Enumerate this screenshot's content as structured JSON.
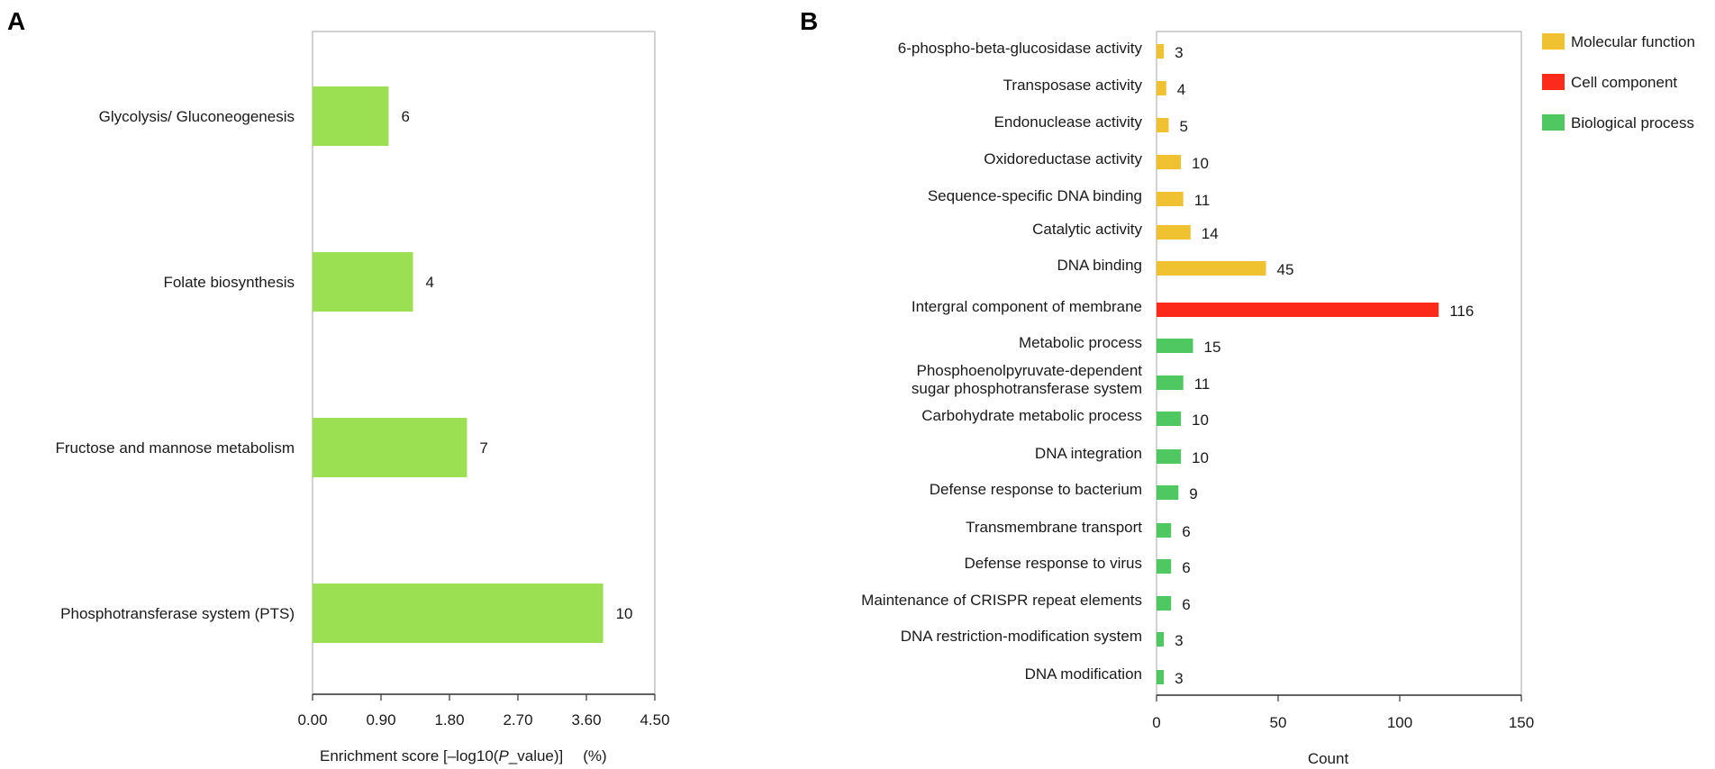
{
  "chart_data": [
    {
      "panel": "A",
      "type": "bar",
      "orientation": "horizontal",
      "categories": [
        "Glycolysis/ Gluconeogenesis",
        "Folate biosynthesis",
        "Fructose and mannose metabolism",
        "Phosphotransferase system (PTS)"
      ],
      "values": [
        1.0,
        1.32,
        2.03,
        3.82
      ],
      "labels": [
        "6",
        "4",
        "7",
        "10"
      ],
      "bar_color": "#9be052",
      "xlabel_parts": [
        "Enrichment score  [–log10(",
        "P",
        "_value)]",
        "(%)"
      ],
      "xlim": [
        0,
        4.5
      ],
      "xticks": [
        "0.00",
        "0.90",
        "1.80",
        "2.70",
        "3.60",
        "4.50"
      ]
    },
    {
      "panel": "B",
      "type": "bar",
      "orientation": "horizontal",
      "categories": [
        "6-phospho-beta-glucosidase activity",
        "Transposase activity",
        "Endonuclease activity",
        "Oxidoreductase activity",
        "Sequence-specific DNA binding",
        "Catalytic activity",
        "DNA binding",
        "Intergral component of  membrane",
        "Metabolic process",
        "Phosphoenolpyruvate-dependent\nsugar phosphotransferase system",
        "Carbohydrate metabolic process",
        "DNA integration",
        "Defense response to bacterium",
        "Transmembrane transport",
        "Defense response to virus",
        "Maintenance of CRISPR repeat elements",
        "DNA restriction-modification system",
        "DNA modification"
      ],
      "values": [
        3,
        4,
        5,
        10,
        11,
        14,
        45,
        116,
        15,
        11,
        10,
        10,
        9,
        6,
        6,
        6,
        3,
        3
      ],
      "groups": [
        "mf",
        "mf",
        "mf",
        "mf",
        "mf",
        "mf",
        "mf",
        "cc",
        "bp",
        "bp",
        "bp",
        "bp",
        "bp",
        "bp",
        "bp",
        "bp",
        "bp",
        "bp"
      ],
      "xlabel": "Count",
      "xlim": [
        0,
        150
      ],
      "xticks": [
        "0",
        "50",
        "100",
        "150"
      ],
      "legend": [
        {
          "key": "mf",
          "name": "Molecular function",
          "color": "#f0c232"
        },
        {
          "key": "cc",
          "name": "Cell component",
          "color": "#fb2a1a"
        },
        {
          "key": "bp",
          "name": "Biological process",
          "color": "#4fc862"
        }
      ]
    }
  ]
}
